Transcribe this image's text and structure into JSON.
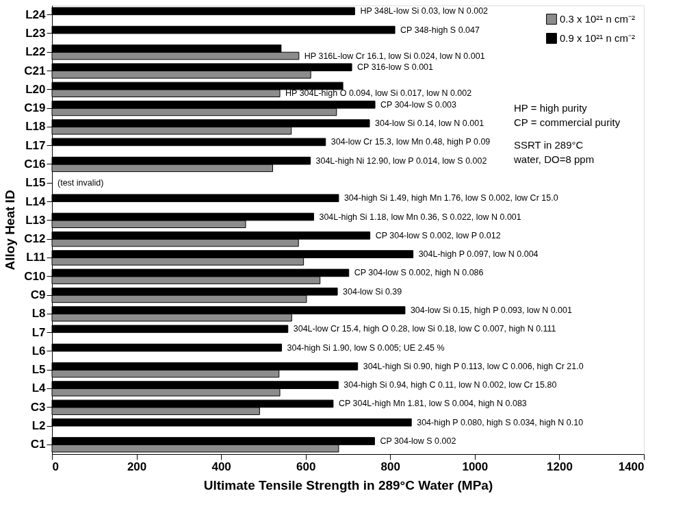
{
  "chart_data": {
    "type": "bar",
    "orientation": "horizontal",
    "xlabel": "Ultimate Tensile Strength in 289°C Water (MPa)",
    "ylabel": "Alloy Heat ID",
    "categories": [
      "L24",
      "L23",
      "L22",
      "C21",
      "L20",
      "C19",
      "L18",
      "L17",
      "C16",
      "L15",
      "L14",
      "L13",
      "C12",
      "L11",
      "C10",
      "C9",
      "L8",
      "L7",
      "L6",
      "L5",
      "L4",
      "C3",
      "L2",
      "C1"
    ],
    "series": [
      {
        "name": "0.3 x 10²¹ n cm⁻²",
        "color": "#8c8c8c",
        "values": [
          null,
          null,
          584,
          612,
          539,
          673,
          566,
          null,
          522,
          null,
          null,
          458,
          583,
          595,
          634,
          602,
          567,
          null,
          null,
          537,
          539,
          491,
          null,
          678
        ]
      },
      {
        "name": "0.9 x 10²¹ n cm⁻²",
        "color": "#000000",
        "values": [
          716,
          811,
          542,
          709,
          688,
          764,
          751,
          647,
          611,
          null,
          678,
          619,
          752,
          854,
          702,
          675,
          835,
          558,
          543,
          723,
          677,
          665,
          850,
          763
        ]
      }
    ],
    "xlim": [
      0,
      1400
    ],
    "xticks": [
      0,
      200,
      400,
      600,
      800,
      1000,
      1200,
      1400
    ],
    "grid": false,
    "legend": "top right",
    "annotations": [
      {
        "text": "HP 348L-low Si 0.03, low N 0.002",
        "x": 716,
        "y": "L24"
      },
      {
        "text": "CP 348-high S 0.047",
        "x": 811,
        "y": "L23"
      },
      {
        "text": "HP 316L-low Cr 16.1, low Si 0.024, low N 0.001",
        "x": 584,
        "y": "L22"
      },
      {
        "text": "CP 316-low S 0.001",
        "x": 709,
        "y": "C21"
      },
      {
        "text": "HP 304L-high O 0.094, low Si 0.017, low N 0.002",
        "x": 539,
        "y": "L20"
      },
      {
        "text": "CP 304-low S 0.003",
        "x": 764,
        "y": "C19"
      },
      {
        "text": "304-low Si 0.14, low N 0.001",
        "x": 751,
        "y": "L18"
      },
      {
        "text": "304-low Cr 15.3, low Mn 0.48, high P 0.09",
        "x": 647,
        "y": "L17"
      },
      {
        "text": "304L-high Ni 12.90, low P 0.014, low S 0.002",
        "x": 611,
        "y": "C16"
      },
      {
        "text": "304-high Si 1.49, high Mn 1.76, low S 0.002, low Cr 15.0",
        "x": 678,
        "y": "L14"
      },
      {
        "text": "304L-high Si 1.18, low Mn 0.36, S 0.022, low N 0.001",
        "x": 619,
        "y": "L13"
      },
      {
        "text": "CP 304-low S 0.002, low P 0.012",
        "x": 752,
        "y": "C12"
      },
      {
        "text": "304L-high P 0.097, low N 0.004",
        "x": 854,
        "y": "L11"
      },
      {
        "text": "CP 304-low S 0.002, high N 0.086",
        "x": 702,
        "y": "C10"
      },
      {
        "text": "304-low Si 0.39",
        "x": 675,
        "y": "C9"
      },
      {
        "text": "304-low Si 0.15, high P 0.093, low N 0.001",
        "x": 835,
        "y": "L8"
      },
      {
        "text": "304L-low Cr 15.4, high O 0.28, low Si 0.18, low C 0.007, high N 0.111",
        "x": 558,
        "y": "L7"
      },
      {
        "text": "304-high Si 1.90, low S 0.005; UE 2.45 %",
        "x": 543,
        "y": "L6"
      },
      {
        "text": "304L-high Si 0.90, high P 0.113, low C 0.006, high Cr 21.0",
        "x": 723,
        "y": "L5"
      },
      {
        "text": "304-high Si 0.94, high C 0.11, low N 0.002, low Cr 15.80",
        "x": 677,
        "y": "L4"
      },
      {
        "text": "CP 304L-high Mn 1.81, low S 0.004, high N 0.083",
        "x": 665,
        "y": "C3"
      },
      {
        "text": "304-high P 0.080, high S 0.034, high N 0.10",
        "x": 850,
        "y": "L2"
      },
      {
        "text": "CP 304-low S 0.002",
        "x": 763,
        "y": "C1"
      },
      "(test invalid)",
      "HP = high purity",
      "CP = commercial purity",
      "SSRT in 289°C",
      "water, DO=8 ppm"
    ]
  }
}
